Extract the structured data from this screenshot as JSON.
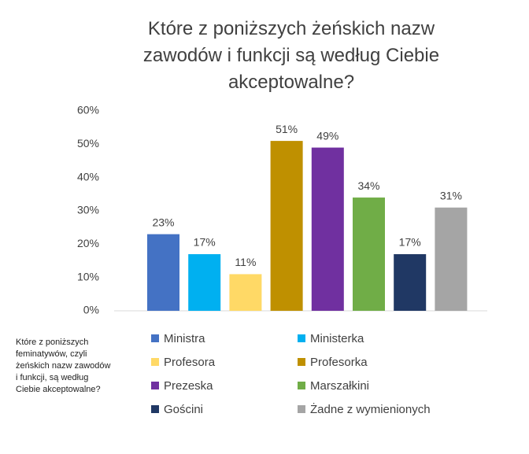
{
  "chart_data": {
    "type": "bar",
    "title": "Które z poniższych żeńskich nazw zawodów i funkcji są według Ciebie akceptowalne?",
    "annotation": "Które z poniższych feminatywów, czyli żeńskich nazw zawodów i funkcji, są według Ciebie akceptowalne?",
    "categories": [
      "Ministra",
      "Ministerka",
      "Profesora",
      "Profesorka",
      "Prezeska",
      "Marszałkini",
      "Gościni",
      "Żadne z wymienionych"
    ],
    "values": [
      23,
      17,
      11,
      51,
      49,
      34,
      17,
      31
    ],
    "value_labels": [
      "23%",
      "17%",
      "11%",
      "51%",
      "49%",
      "34%",
      "17%",
      "31%"
    ],
    "colors": [
      "#4472c4",
      "#00b0f0",
      "#ffd966",
      "#bf9000",
      "#7030a0",
      "#70ad47",
      "#203864",
      "#a5a5a5"
    ],
    "ylim": [
      0,
      60
    ],
    "yticks": [
      {
        "value": 0,
        "label": "0%"
      },
      {
        "value": 10,
        "label": "10%"
      },
      {
        "value": 20,
        "label": "20%"
      },
      {
        "value": 30,
        "label": "30%"
      },
      {
        "value": 40,
        "label": "40%"
      },
      {
        "value": 50,
        "label": "50%"
      },
      {
        "value": 60,
        "label": "60%"
      }
    ],
    "grid": false,
    "legend_columns": 2
  }
}
